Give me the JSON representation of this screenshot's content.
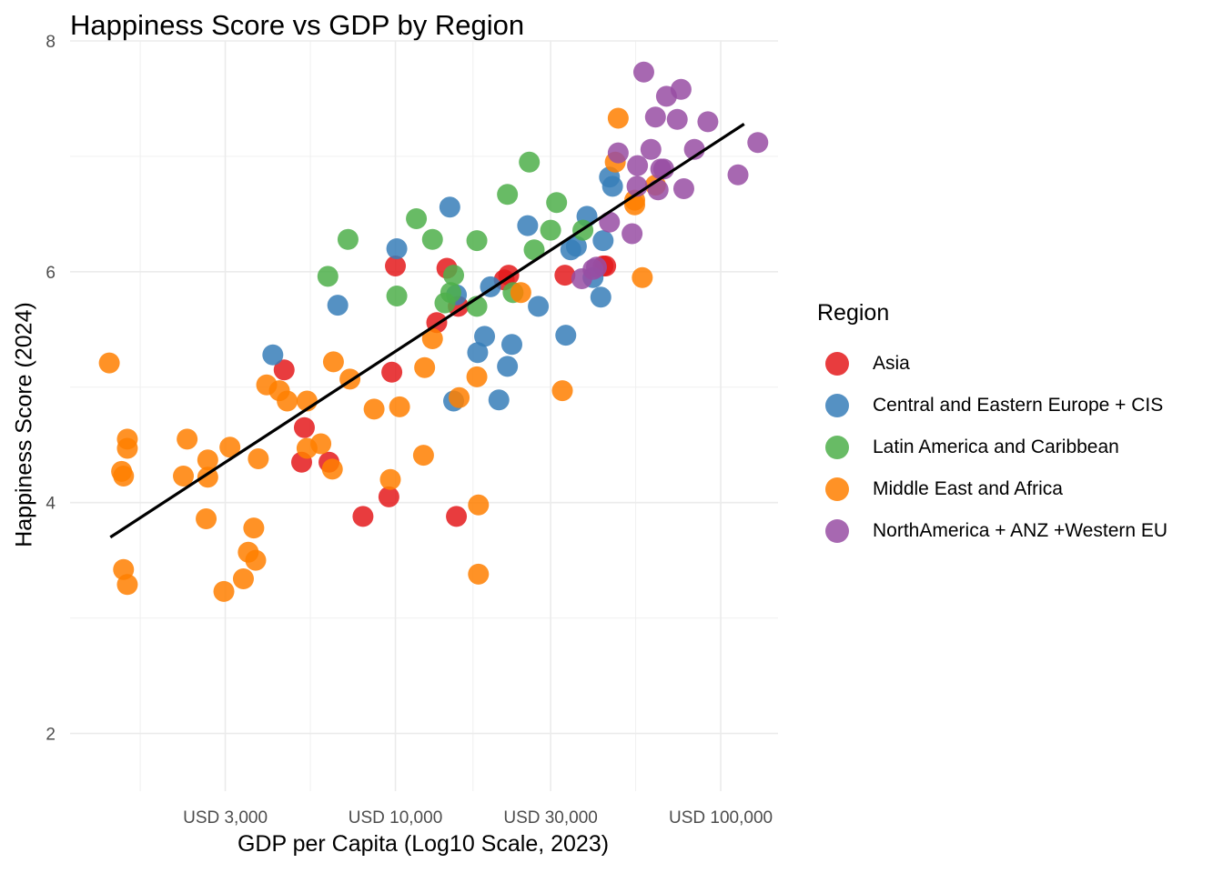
{
  "chart_data": {
    "type": "scatter",
    "title": "Happiness Score vs GDP by Region",
    "xlabel": "GDP per Capita (Log10 Scale, 2023)",
    "ylabel": "Happiness Score (2024)",
    "x_scale": "log10",
    "xlim": [
      1000,
      150000
    ],
    "ylim": [
      1.5,
      8.0
    ],
    "x_ticks": [
      {
        "value": 3000,
        "label": "USD 3,000"
      },
      {
        "value": 10000,
        "label": "USD 10,000"
      },
      {
        "value": 30000,
        "label": "USD 30,000"
      },
      {
        "value": 100000,
        "label": "USD 100,000"
      }
    ],
    "y_ticks": [
      {
        "value": 2,
        "label": "2"
      },
      {
        "value": 4,
        "label": "4"
      },
      {
        "value": 6,
        "label": "6"
      },
      {
        "value": 8,
        "label": "8"
      }
    ],
    "grid": true,
    "legend": {
      "title": "Region",
      "position": "right"
    },
    "trend_line": {
      "x": [
        1330,
        118000
      ],
      "y": [
        3.7,
        7.28
      ],
      "color": "#000000"
    },
    "series": [
      {
        "name": "Asia",
        "color": "#E41A1C",
        "points": [
          [
            4550,
            5.15
          ],
          [
            5250,
            4.65
          ],
          [
            5150,
            4.35
          ],
          [
            6250,
            4.35
          ],
          [
            7950,
            3.88
          ],
          [
            9550,
            4.05
          ],
          [
            10000,
            6.05
          ],
          [
            9750,
            5.13
          ],
          [
            14400,
            6.03
          ],
          [
            13400,
            5.56
          ],
          [
            15600,
            5.7
          ],
          [
            15400,
            3.88
          ],
          [
            22300,
            5.97
          ],
          [
            21600,
            5.93
          ],
          [
            33200,
            5.97
          ],
          [
            43500,
            6.05
          ],
          [
            44300,
            6.05
          ]
        ]
      },
      {
        "name": "Central and Eastern Europe + CIS",
        "color": "#377EB8",
        "points": [
          [
            4200,
            5.28
          ],
          [
            6650,
            5.71
          ],
          [
            10100,
            6.2
          ],
          [
            14700,
            6.56
          ],
          [
            15400,
            5.8
          ],
          [
            15100,
            4.88
          ],
          [
            19600,
            5.87
          ],
          [
            18800,
            5.44
          ],
          [
            17900,
            5.3
          ],
          [
            20800,
            4.89
          ],
          [
            22100,
            5.18
          ],
          [
            22800,
            5.37
          ],
          [
            25500,
            6.4
          ],
          [
            27500,
            5.7
          ],
          [
            33400,
            5.45
          ],
          [
            34600,
            6.19
          ],
          [
            36000,
            6.22
          ],
          [
            38800,
            6.48
          ],
          [
            40500,
            5.95
          ],
          [
            42800,
            5.78
          ],
          [
            43500,
            6.27
          ],
          [
            45500,
            6.82
          ],
          [
            46500,
            6.74
          ]
        ]
      },
      {
        "name": "Latin America and Caribbean",
        "color": "#4DAF4A",
        "points": [
          [
            6200,
            5.96
          ],
          [
            7150,
            6.28
          ],
          [
            10100,
            5.79
          ],
          [
            11600,
            6.46
          ],
          [
            13000,
            6.28
          ],
          [
            14200,
            5.73
          ],
          [
            15100,
            5.97
          ],
          [
            14800,
            5.82
          ],
          [
            17800,
            5.7
          ],
          [
            17800,
            6.27
          ],
          [
            22100,
            6.67
          ],
          [
            23000,
            5.82
          ],
          [
            25800,
            6.95
          ],
          [
            26700,
            6.19
          ],
          [
            30000,
            6.36
          ],
          [
            31300,
            6.6
          ],
          [
            37700,
            6.36
          ]
        ]
      },
      {
        "name": "Middle East and Africa",
        "color": "#FF7F00",
        "points": [
          [
            1320,
            5.21
          ],
          [
            1440,
            4.27
          ],
          [
            1460,
            4.23
          ],
          [
            1500,
            4.55
          ],
          [
            1500,
            4.47
          ],
          [
            1460,
            3.42
          ],
          [
            1500,
            3.29
          ],
          [
            2230,
            4.23
          ],
          [
            2290,
            4.55
          ],
          [
            2650,
            4.22
          ],
          [
            2650,
            4.37
          ],
          [
            2620,
            3.86
          ],
          [
            2970,
            3.23
          ],
          [
            3100,
            4.48
          ],
          [
            3410,
            3.34
          ],
          [
            3530,
            3.57
          ],
          [
            3670,
            3.78
          ],
          [
            3720,
            3.5
          ],
          [
            3790,
            4.38
          ],
          [
            4020,
            5.02
          ],
          [
            4400,
            4.97
          ],
          [
            4650,
            4.88
          ],
          [
            5350,
            4.88
          ],
          [
            5350,
            4.47
          ],
          [
            5900,
            4.51
          ],
          [
            6400,
            4.29
          ],
          [
            6450,
            5.22
          ],
          [
            7250,
            5.07
          ],
          [
            8600,
            4.81
          ],
          [
            9650,
            4.2
          ],
          [
            10300,
            4.83
          ],
          [
            12200,
            4.41
          ],
          [
            12300,
            5.17
          ],
          [
            13000,
            5.42
          ],
          [
            15700,
            4.91
          ],
          [
            17800,
            5.09
          ],
          [
            18000,
            3.98
          ],
          [
            18000,
            3.38
          ],
          [
            24300,
            5.82
          ],
          [
            32600,
            4.97
          ],
          [
            47400,
            6.95
          ],
          [
            48400,
            7.33
          ],
          [
            54400,
            6.62
          ],
          [
            54400,
            6.58
          ],
          [
            57400,
            5.95
          ],
          [
            63000,
            6.75
          ]
        ]
      },
      {
        "name": "NorthAmerica + ANZ +Western EU",
        "color": "#984EA3",
        "points": [
          [
            37400,
            5.94
          ],
          [
            40500,
            6.02
          ],
          [
            41500,
            6.04
          ],
          [
            45500,
            6.43
          ],
          [
            48400,
            7.03
          ],
          [
            53400,
            6.33
          ],
          [
            55500,
            6.92
          ],
          [
            55300,
            6.74
          ],
          [
            58000,
            7.73
          ],
          [
            61000,
            7.06
          ],
          [
            63000,
            7.34
          ],
          [
            64200,
            6.71
          ],
          [
            65400,
            6.89
          ],
          [
            66800,
            6.89
          ],
          [
            68100,
            7.52
          ],
          [
            73500,
            7.32
          ],
          [
            75500,
            7.58
          ],
          [
            77000,
            6.72
          ],
          [
            83000,
            7.06
          ],
          [
            91300,
            7.3
          ],
          [
            113000,
            6.84
          ],
          [
            130000,
            7.12
          ]
        ]
      }
    ]
  }
}
